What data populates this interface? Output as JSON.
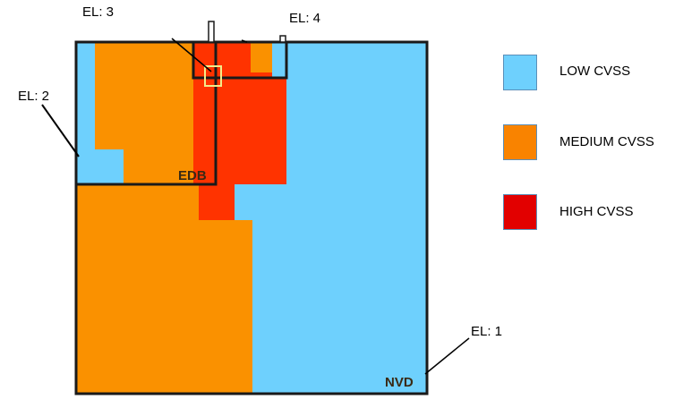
{
  "colors": {
    "low": "#6ed0fd",
    "medium": "#fa9100",
    "high": "#ff3300",
    "border": "#1a1a1a",
    "selection": "#f4ec8a"
  },
  "legend": {
    "items": [
      {
        "key": "low",
        "label": "LOW CVSS",
        "color": "#6ed0fd"
      },
      {
        "key": "medium",
        "label": "MEDIUM CVSS",
        "color": "#f98300"
      },
      {
        "key": "high",
        "label": "HIGH CVSS",
        "color": "#e20000"
      }
    ]
  },
  "levels": {
    "el1": "EL: 1",
    "el2": "EL: 2",
    "el3": "EL: 3",
    "el4": "EL: 4"
  },
  "regions": {
    "nvd": "NVD",
    "edb": "EDB"
  }
}
